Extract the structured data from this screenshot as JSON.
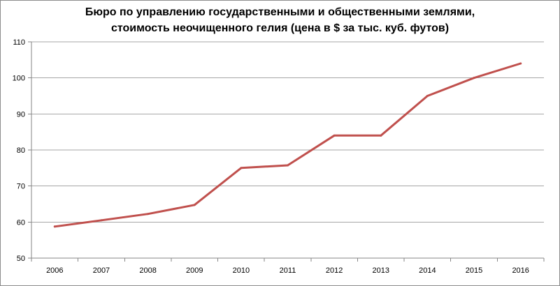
{
  "chart_data": {
    "type": "line",
    "title_lines": [
      "Бюро по управлению государственными и общественными землями,",
      "стоимость неочищенного гелия (цена в $ за тыс. куб. футов)"
    ],
    "xlabel": "",
    "ylabel": "",
    "categories": [
      "2006",
      "2007",
      "2008",
      "2009",
      "2010",
      "2011",
      "2012",
      "2013",
      "2014",
      "2015",
      "2016"
    ],
    "series": [
      {
        "values": [
          58.75,
          60.5,
          62.25,
          64.75,
          75.0,
          75.75,
          84.0,
          84.0,
          95.0,
          100.0,
          104.0
        ],
        "color": "#c0504d"
      }
    ],
    "ylim": [
      50,
      110
    ],
    "yticks": [
      50,
      60,
      70,
      80,
      90,
      100,
      110
    ],
    "grid": true,
    "legend": "none",
    "colors": {
      "grid": "#a6a6a6",
      "axis": "#868686",
      "line": "#c0504d"
    }
  }
}
